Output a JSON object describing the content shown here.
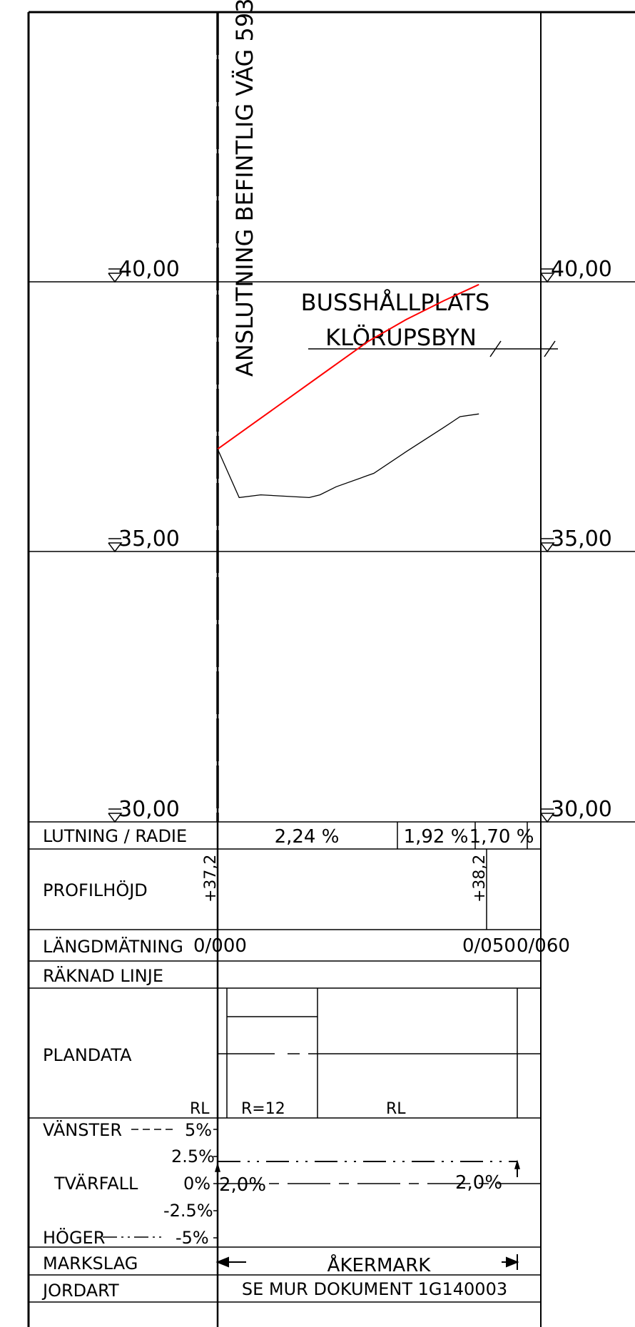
{
  "vertical_label": "ANSLUTNING BEFINTLIG VÄG 593",
  "title_line1": "BUSSHÅLLPLATS",
  "title_line2": "KLÖRUPSBYN",
  "levels": [
    {
      "value": 40,
      "left_label": "40,00",
      "right_label": "40,00"
    },
    {
      "value": 35,
      "left_label": "35,00",
      "right_label": "35,00"
    },
    {
      "value": 30,
      "left_label": "30,00",
      "right_label": "30,00"
    }
  ],
  "profile": {
    "design_line_color": "#ff0000",
    "ground_line_color": "#000000",
    "design_line": [
      [
        0,
        36.9
      ],
      [
        7,
        37.4
      ],
      [
        14,
        37.9
      ],
      [
        21,
        38.4
      ],
      [
        28,
        38.9
      ],
      [
        35,
        39.3
      ],
      [
        42,
        39.65
      ],
      [
        48.5,
        39.95
      ]
    ],
    "ground_line": [
      [
        0,
        36.9
      ],
      [
        4,
        36.0
      ],
      [
        8,
        36.05
      ],
      [
        17,
        36.0
      ],
      [
        19,
        36.05
      ],
      [
        22,
        36.2
      ],
      [
        29,
        36.45
      ],
      [
        35,
        36.85
      ],
      [
        42,
        37.3
      ],
      [
        45,
        37.5
      ],
      [
        48.5,
        37.55
      ]
    ]
  },
  "rows": {
    "lutning": {
      "label": "LUTNING / RADIE",
      "cells": [
        "2,24 %",
        "1,92 %",
        "1,70 %"
      ]
    },
    "profilhojd": {
      "label": "PROFILHÖJD",
      "values": [
        "+37,2",
        "+38,2"
      ]
    },
    "langdmatning": {
      "label": "LÄNGDMÄTNING",
      "values": [
        "0/000",
        "0/050",
        "0/060"
      ]
    },
    "raknad_linje": {
      "label": "RÄKNAD LINJE"
    },
    "plandata": {
      "label": "PLANDATA",
      "texts": [
        "RL",
        "R=12",
        "RL"
      ]
    },
    "tvarfall": {
      "label": "TVÄRFALL",
      "left": "VÄNSTER",
      "right": "HÖGER",
      "scale": [
        "5%",
        "2.5%",
        "0%",
        "-2.5%",
        "-5%"
      ],
      "values": [
        "2,0%",
        "2,0%"
      ]
    },
    "markslag": {
      "label": "MARKSLAG",
      "value": "ÅKERMARK"
    },
    "jordart": {
      "label": "JORDART",
      "value": "SE MUR DOKUMENT 1G140003"
    }
  }
}
